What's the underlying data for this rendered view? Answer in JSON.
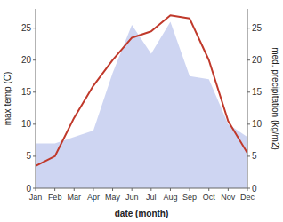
{
  "chart_data": {
    "type": "line",
    "xlabel": "date (month)",
    "ylabel": "max temp (C)",
    "y2label": "med. precipitation (kg/m2)",
    "categories": [
      "Jan",
      "Feb",
      "Mar",
      "Apr",
      "May",
      "Jun",
      "Jul",
      "Aug",
      "Sep",
      "Oct",
      "Nov",
      "Dec"
    ],
    "series": [
      {
        "type": "area",
        "axis": "y2",
        "color": "#c5cef0",
        "values": [
          7.0,
          7.0,
          8.0,
          9.0,
          18.0,
          25.5,
          21.0,
          26.0,
          17.5,
          17.0,
          10.0,
          8.0
        ]
      },
      {
        "type": "line",
        "color": "#c0392b",
        "values": [
          3.5,
          5.0,
          11.0,
          16.0,
          20.0,
          23.5,
          24.5,
          27.0,
          26.5,
          20.0,
          10.5,
          5.5
        ]
      }
    ],
    "ylim": [
      0,
      28
    ],
    "yticks": [
      0,
      5,
      10,
      15,
      20,
      25
    ],
    "y2lim": [
      0,
      28
    ],
    "y2ticks": [
      0,
      5,
      10,
      15,
      20,
      25
    ],
    "grid": false
  }
}
